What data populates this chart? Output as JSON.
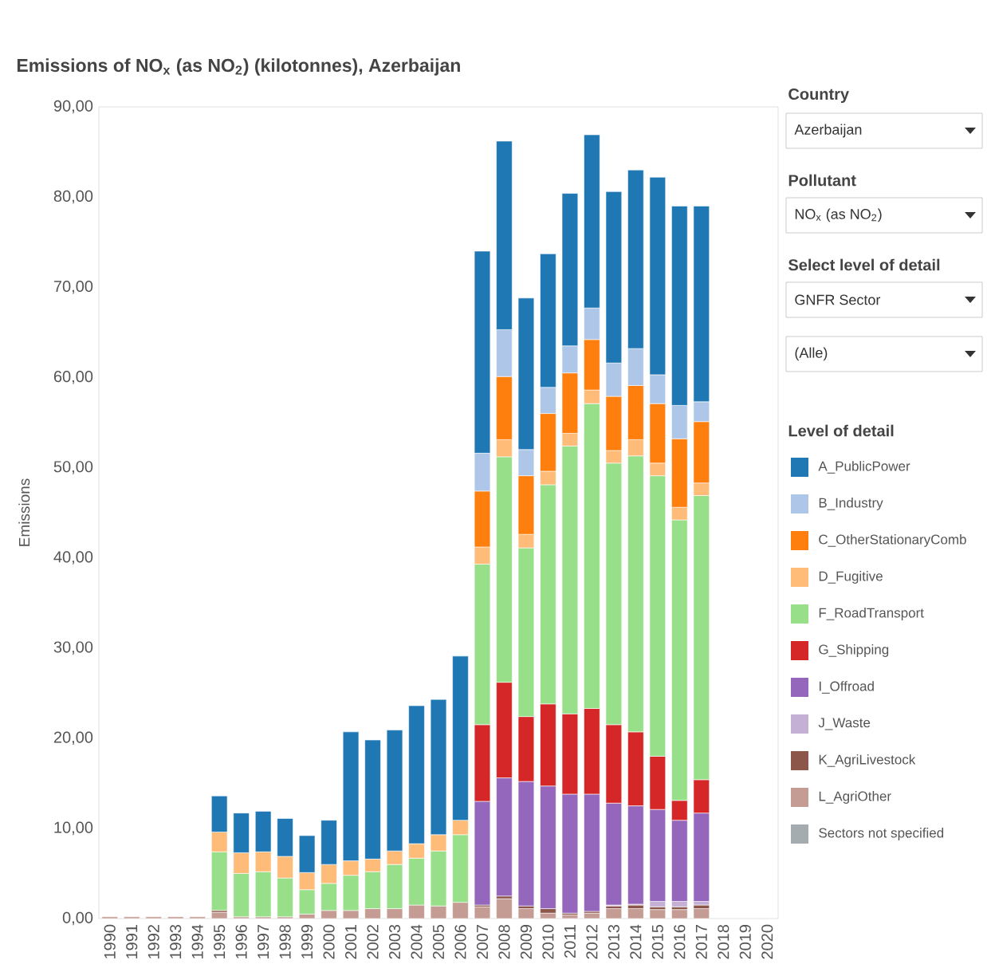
{
  "chart_data": {
    "type": "bar",
    "stacked": true,
    "title": "Emissions of NO$_{x}$ (as NO$_{2}$) (kilotonnes), Azerbaijan",
    "ylabel": "Emissions",
    "legend_title": "Level of detail",
    "legend": "right",
    "grid": false,
    "annotations": [
      "Country",
      "Azerbaijan",
      "Pollutant",
      "NO$_{x}$ (as NO$_{2}$)",
      "Select level of detail",
      "GNFR Sector",
      "(Alle)"
    ],
    "categories": [
      "1990",
      "1991",
      "1992",
      "1993",
      "1994",
      "1995",
      "1996",
      "1997",
      "1998",
      "1999",
      "2000",
      "2001",
      "2002",
      "2003",
      "2004",
      "2005",
      "2006",
      "2007",
      "2008",
      "2009",
      "2010",
      "2011",
      "2012",
      "2013",
      "2014",
      "2015",
      "2016",
      "2017",
      "2018",
      "2019",
      "2020"
    ],
    "ylim": [
      0,
      90
    ],
    "yticks": [
      {
        "value": 0,
        "label": "0,00"
      },
      {
        "value": 10,
        "label": "10,00"
      },
      {
        "value": 20,
        "label": "20,00"
      },
      {
        "value": 30,
        "label": "30,00"
      },
      {
        "value": 40,
        "label": "40,00"
      },
      {
        "value": 50,
        "label": "50,00"
      },
      {
        "value": 60,
        "label": "60,00"
      },
      {
        "value": 70,
        "label": "70,00"
      },
      {
        "value": 80,
        "label": "80,00"
      },
      {
        "value": 90,
        "label": "90,00"
      }
    ],
    "series": [
      {
        "name": "L_AgriOther",
        "color": "#c49c94",
        "values": [
          0.2,
          0.2,
          0.2,
          0.2,
          0.2,
          0.7,
          0.2,
          0.2,
          0.2,
          0.5,
          0.9,
          0.9,
          1.1,
          1.1,
          1.5,
          1.4,
          1.8,
          1.3,
          2.2,
          1.1,
          0.6,
          0.4,
          0.6,
          1.1,
          1.1,
          1.0,
          1.0,
          1.1,
          null,
          null,
          null
        ]
      },
      {
        "name": "K_AgriLivestock",
        "color": "#8c564b",
        "values": [
          null,
          null,
          null,
          null,
          null,
          0.2,
          null,
          null,
          null,
          null,
          null,
          null,
          null,
          null,
          null,
          null,
          null,
          0.2,
          0.3,
          0.3,
          0.5,
          0.2,
          0.2,
          0.3,
          0.4,
          0.3,
          0.3,
          0.4,
          null,
          null,
          null
        ]
      },
      {
        "name": "J_Waste",
        "color": "#c5b0d5",
        "values": [
          null,
          null,
          null,
          null,
          null,
          null,
          null,
          null,
          null,
          null,
          null,
          null,
          null,
          null,
          null,
          null,
          null,
          null,
          null,
          null,
          null,
          null,
          null,
          0.1,
          0.1,
          0.6,
          0.6,
          0.4,
          null,
          null,
          null
        ]
      },
      {
        "name": "I_Offroad",
        "color": "#9467bd",
        "values": [
          null,
          null,
          null,
          null,
          null,
          null,
          null,
          null,
          null,
          null,
          null,
          null,
          null,
          null,
          null,
          null,
          null,
          11.5,
          13.1,
          13.8,
          13.6,
          13.2,
          13.0,
          11.3,
          10.9,
          10.2,
          9.0,
          9.8,
          null,
          null,
          null
        ]
      },
      {
        "name": "G_Shipping",
        "color": "#d62728",
        "values": [
          null,
          null,
          null,
          null,
          null,
          null,
          null,
          null,
          null,
          null,
          null,
          null,
          null,
          null,
          null,
          null,
          null,
          8.5,
          10.6,
          7.2,
          9.1,
          8.9,
          9.5,
          8.7,
          8.2,
          5.9,
          2.2,
          3.7,
          null,
          null,
          null
        ]
      },
      {
        "name": "F_RoadTransport",
        "color": "#98df8a",
        "values": [
          null,
          null,
          null,
          null,
          null,
          6.5,
          4.8,
          5.0,
          4.3,
          2.7,
          3.0,
          3.9,
          4.1,
          4.9,
          5.2,
          6.1,
          7.5,
          17.8,
          25.0,
          18.7,
          24.3,
          29.7,
          33.8,
          29.0,
          30.6,
          31.1,
          31.1,
          31.5,
          null,
          null,
          null
        ]
      },
      {
        "name": "D_Fugitive",
        "color": "#ffbb78",
        "values": [
          null,
          null,
          null,
          null,
          null,
          2.2,
          2.3,
          2.2,
          2.4,
          1.9,
          2.1,
          1.6,
          1.4,
          1.5,
          1.6,
          1.8,
          1.6,
          1.9,
          1.9,
          1.5,
          1.5,
          1.4,
          1.5,
          1.4,
          1.8,
          1.4,
          1.4,
          1.4,
          null,
          null,
          null
        ]
      },
      {
        "name": "C_OtherStationaryComb",
        "color": "#ff7f0e",
        "values": [
          null,
          null,
          null,
          null,
          null,
          null,
          null,
          null,
          null,
          null,
          null,
          null,
          null,
          null,
          null,
          null,
          null,
          6.2,
          7.0,
          6.5,
          6.4,
          6.7,
          5.6,
          6.0,
          6.0,
          6.6,
          7.6,
          6.8,
          null,
          null,
          null
        ]
      },
      {
        "name": "B_Industry",
        "color": "#aec7e8",
        "values": [
          null,
          null,
          null,
          null,
          null,
          null,
          null,
          null,
          null,
          null,
          null,
          null,
          null,
          null,
          null,
          null,
          null,
          4.2,
          5.2,
          2.9,
          2.9,
          3.0,
          3.5,
          3.7,
          4.1,
          3.2,
          3.7,
          2.2,
          null,
          null,
          null
        ]
      },
      {
        "name": "A_PublicPower",
        "color": "#1f77b4",
        "values": [
          null,
          null,
          null,
          null,
          null,
          4.0,
          4.4,
          4.5,
          4.2,
          4.1,
          4.9,
          14.3,
          13.2,
          13.4,
          15.3,
          15.0,
          18.2,
          22.4,
          20.9,
          16.8,
          14.8,
          16.9,
          19.2,
          19.0,
          19.8,
          21.9,
          22.1,
          21.7,
          null,
          null,
          null
        ]
      },
      {
        "name": "Sectors not specified",
        "color": "#a5acaf",
        "values": [
          null,
          null,
          null,
          null,
          null,
          null,
          null,
          null,
          null,
          null,
          null,
          null,
          null,
          null,
          null,
          null,
          null,
          null,
          null,
          null,
          null,
          null,
          null,
          null,
          null,
          null,
          null,
          null,
          null,
          null,
          null
        ]
      }
    ]
  }
}
